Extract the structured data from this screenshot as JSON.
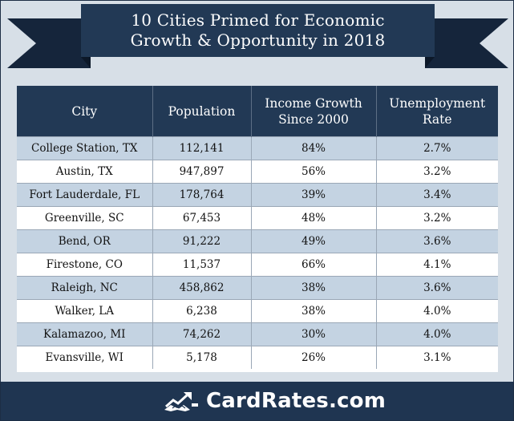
{
  "banner": {
    "title_line1": "10 Cities Primed for Economic",
    "title_line2": "Growth & Opportunity in 2018"
  },
  "table": {
    "headers": [
      "City",
      "Population",
      "Income Growth Since 2000",
      "Unemployment Rate"
    ],
    "header_lines": [
      [
        "City"
      ],
      [
        "Population"
      ],
      [
        "Income Growth",
        "Since 2000"
      ],
      [
        "Unemployment",
        "Rate"
      ]
    ],
    "rows": [
      [
        "College Station, TX",
        "112,141",
        "84%",
        "2.7%"
      ],
      [
        "Austin, TX",
        "947,897",
        "56%",
        "3.2%"
      ],
      [
        "Fort Lauderdale, FL",
        "178,764",
        "39%",
        "3.4%"
      ],
      [
        "Greenville, SC",
        "67,453",
        "48%",
        "3.2%"
      ],
      [
        "Bend, OR",
        "91,222",
        "49%",
        "3.6%"
      ],
      [
        "Firestone, CO",
        "11,537",
        "66%",
        "4.1%"
      ],
      [
        "Raleigh, NC",
        "458,862",
        "38%",
        "3.6%"
      ],
      [
        "Walker, LA",
        "6,238",
        "38%",
        "4.0%"
      ],
      [
        "Kalamazoo, MI",
        "74,262",
        "30%",
        "4.0%"
      ],
      [
        "Evansville, WI",
        "5,178",
        "26%",
        "3.1%"
      ]
    ]
  },
  "footer": {
    "logo_text": "CardRates.com",
    "logo_icon": "handshake-chart-icon"
  },
  "colors": {
    "navy": "#223955",
    "row_alt": "#c4d3e2",
    "background": "#d7dfe7"
  }
}
